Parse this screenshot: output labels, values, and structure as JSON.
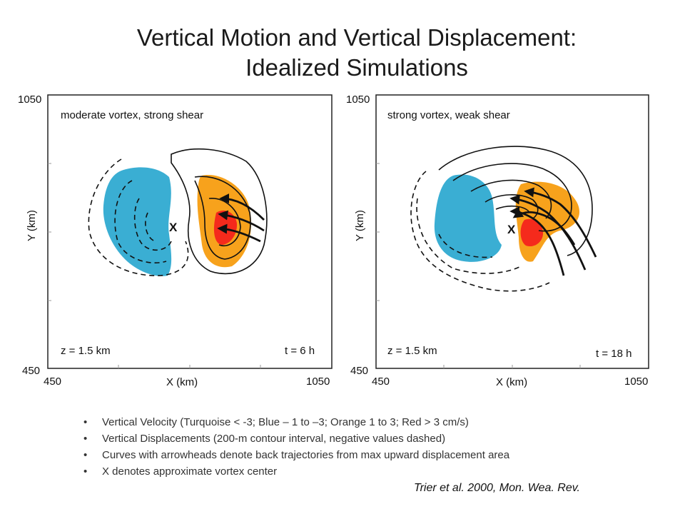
{
  "title": {
    "line1": "Vertical Motion and Vertical Displacement:",
    "line2": "Idealized Simulations"
  },
  "panels": [
    {
      "label": "moderate vortex, strong shear",
      "y_max": "1050",
      "y_min": "450",
      "x_min": "450",
      "x_max": "1050",
      "ylabel": "Y (km)",
      "xlabel": "X (km)",
      "level": "z = 1.5 km",
      "time": "t = 6 h",
      "center_marker": "X"
    },
    {
      "label": "strong vortex, weak shear",
      "y_max": "1050",
      "y_min": "450",
      "x_min": "450",
      "x_max": "1050",
      "ylabel": "Y (km)",
      "xlabel": "X (km)",
      "level": "z = 1.5 km",
      "time": "t = 18 h",
      "center_marker": "X"
    }
  ],
  "colors": {
    "turquoise": "#3aaed3",
    "orange": "#f7a21c",
    "red": "#f52a1c"
  },
  "bullets": [
    "Vertical Velocity (Turquoise < -3; Blue – 1 to –3; Orange 1 to 3; Red > 3 cm/s)",
    "Vertical Displacements (200-m contour interval, negative values dashed)",
    "Curves with arrowheads denote back trajectories from max upward displacement area",
    "X denotes approximate vortex center"
  ],
  "bullet_symbol": "•",
  "citation": "Trier et al. 2000, Mon. Wea. Rev."
}
